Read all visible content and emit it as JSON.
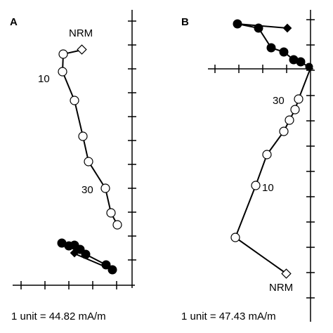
{
  "panels": [
    {
      "letter": "A",
      "caption": "1 unit = 44.82 mA/m",
      "nrm_label": "NRM",
      "step_labels": [
        "10",
        "30"
      ]
    },
    {
      "letter": "B",
      "caption": "1 unit = 47.43 mA/m",
      "nrm_label": "NRM",
      "step_labels": [
        "30",
        "10"
      ]
    }
  ],
  "colors": {
    "ink": "#000000",
    "open_symbol_fill": "#ffffff",
    "closed_symbol_fill": "#000000"
  },
  "symbols": {
    "nrm": "open-diamond",
    "vertical_projection": "open-circle",
    "horizontal_projection": "filled-circle",
    "horizontal_nrm": "filled-diamond"
  }
}
